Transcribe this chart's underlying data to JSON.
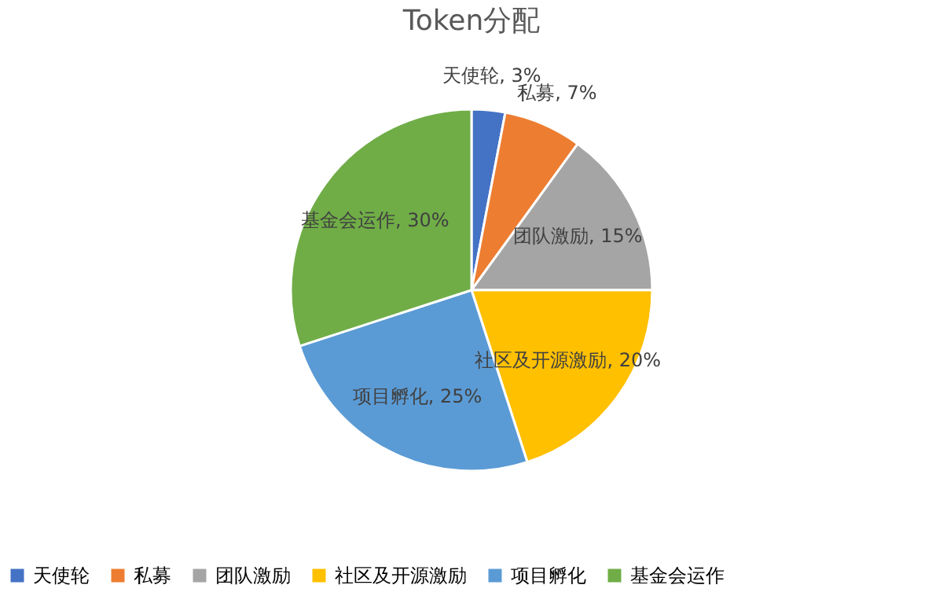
{
  "chart_data": {
    "type": "pie",
    "title": "Token分配",
    "categories": [
      "天使轮",
      "私募",
      "团队激励",
      "社区及开源激励",
      "项目孵化",
      "基金会运作"
    ],
    "values": [
      3,
      7,
      15,
      20,
      25,
      30
    ],
    "colors": [
      "#4472c4",
      "#ed7d31",
      "#a5a5a5",
      "#ffc000",
      "#5b9bd5",
      "#70ad47"
    ],
    "value_labels": [
      "天使轮, 3%",
      "私募, 7%",
      "团队激励, 15%",
      "社区及开源激励, 20%",
      "项目孵化, 25%",
      "基金会运作, 30%"
    ],
    "legend": "bottom"
  }
}
